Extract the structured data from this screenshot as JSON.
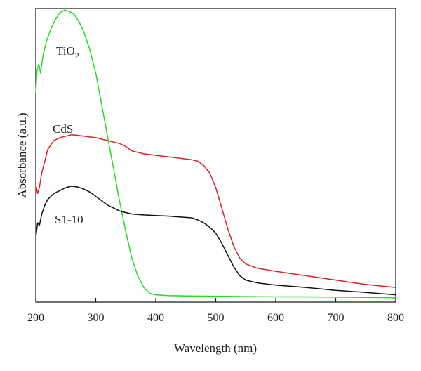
{
  "chart_data": {
    "type": "line",
    "xlabel": "Wavelength (nm)",
    "ylabel": "Absorbance (a.u.)",
    "xlim": [
      200,
      800
    ],
    "ylim": [
      0,
      1
    ],
    "xticks": [
      200,
      300,
      400,
      500,
      600,
      700,
      800
    ],
    "yticks_labeled": false,
    "grid": false,
    "legend": "none",
    "series": [
      {
        "name": "TiO2",
        "color": "#22dd22",
        "x": [
          200,
          202,
          205,
          208,
          212,
          218,
          225,
          232,
          240,
          248,
          256,
          264,
          272,
          280,
          290,
          300,
          310,
          320,
          330,
          340,
          350,
          360,
          370,
          380,
          390,
          400,
          420,
          450,
          500,
          550,
          600,
          650,
          700,
          750,
          800
        ],
        "y": [
          0.71,
          0.79,
          0.81,
          0.78,
          0.84,
          0.89,
          0.93,
          0.96,
          0.985,
          0.995,
          0.99,
          0.98,
          0.955,
          0.92,
          0.86,
          0.78,
          0.67,
          0.56,
          0.45,
          0.34,
          0.24,
          0.15,
          0.09,
          0.05,
          0.03,
          0.025,
          0.022,
          0.021,
          0.02,
          0.019,
          0.018,
          0.018,
          0.017,
          0.016,
          0.015
        ]
      },
      {
        "name": "CdS",
        "color": "#dd2222",
        "x": [
          200,
          203,
          206,
          210,
          215,
          220,
          230,
          240,
          250,
          260,
          270,
          280,
          300,
          320,
          340,
          350,
          360,
          370,
          380,
          400,
          420,
          440,
          460,
          470,
          480,
          490,
          500,
          510,
          520,
          530,
          540,
          550,
          570,
          600,
          650,
          700,
          750,
          800
        ],
        "y": [
          0.4,
          0.37,
          0.39,
          0.44,
          0.48,
          0.52,
          0.55,
          0.56,
          0.565,
          0.57,
          0.568,
          0.565,
          0.56,
          0.55,
          0.54,
          0.53,
          0.515,
          0.51,
          0.505,
          0.5,
          0.495,
          0.49,
          0.485,
          0.48,
          0.465,
          0.44,
          0.39,
          0.32,
          0.25,
          0.19,
          0.15,
          0.13,
          0.115,
          0.105,
          0.09,
          0.075,
          0.06,
          0.05
        ]
      },
      {
        "name": "S1-10",
        "color": "#111111",
        "x": [
          200,
          203,
          206,
          210,
          215,
          220,
          230,
          240,
          250,
          260,
          270,
          280,
          290,
          300,
          310,
          320,
          330,
          340,
          350,
          360,
          380,
          400,
          420,
          440,
          460,
          470,
          480,
          490,
          500,
          510,
          520,
          530,
          540,
          550,
          570,
          600,
          650,
          700,
          750,
          800
        ],
        "y": [
          0.22,
          0.27,
          0.26,
          0.3,
          0.33,
          0.35,
          0.37,
          0.38,
          0.39,
          0.395,
          0.392,
          0.385,
          0.375,
          0.36,
          0.345,
          0.33,
          0.32,
          0.31,
          0.305,
          0.3,
          0.297,
          0.295,
          0.293,
          0.29,
          0.287,
          0.28,
          0.27,
          0.255,
          0.235,
          0.2,
          0.16,
          0.12,
          0.09,
          0.075,
          0.065,
          0.058,
          0.05,
          0.04,
          0.033,
          0.025
        ]
      }
    ],
    "annotations": [
      {
        "series": "TiO2",
        "text": "TiO",
        "subscript": "2"
      },
      {
        "series": "CdS",
        "text": "CdS"
      },
      {
        "series": "S1-10",
        "text": "S1-10"
      }
    ]
  }
}
